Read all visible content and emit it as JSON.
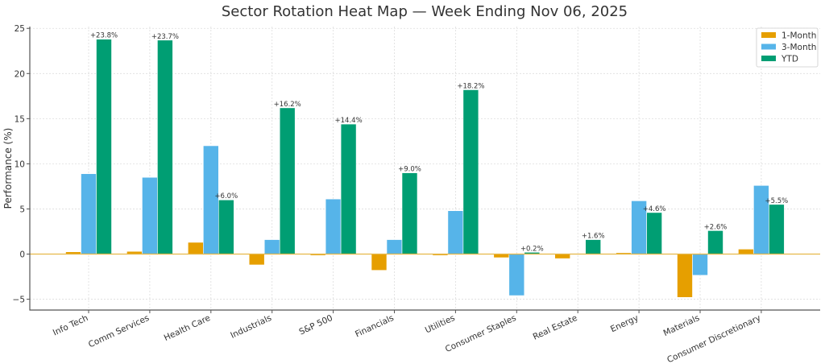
{
  "chart_data": {
    "type": "bar",
    "title": "Sector Rotation Heat Map — Week Ending Nov 06, 2025",
    "xlabel": "",
    "ylabel": "Performance (%)",
    "ylim": [
      -6.2,
      25.2
    ],
    "yticks": [
      -5,
      0,
      5,
      10,
      15,
      20,
      25
    ],
    "ytick_labels": [
      "−5",
      "0",
      "5",
      "10",
      "15",
      "20",
      "25"
    ],
    "grid": true,
    "legend_position": "top-right",
    "categories": [
      "Info Tech",
      "Comm Services",
      "Health Care",
      "Industrials",
      "S&P 500",
      "Financials",
      "Utilities",
      "Consumer Staples",
      "Real Estate",
      "Energy",
      "Materials",
      "Consumer Discretionary"
    ],
    "series": [
      {
        "name": "1-Month",
        "color": "#E69F00",
        "values": [
          0.25,
          0.3,
          1.3,
          -1.2,
          -0.15,
          -1.8,
          -0.15,
          -0.4,
          -0.5,
          0.15,
          -4.8,
          0.55
        ]
      },
      {
        "name": "3-Month",
        "color": "#56B4E9",
        "values": [
          8.9,
          8.5,
          12.0,
          1.6,
          6.1,
          1.6,
          4.8,
          -4.6,
          0.05,
          5.9,
          -2.35,
          7.6
        ]
      },
      {
        "name": "YTD",
        "color": "#009E73",
        "values": [
          23.8,
          23.7,
          6.0,
          16.2,
          14.4,
          9.0,
          18.2,
          0.2,
          1.6,
          4.6,
          2.6,
          5.5
        ]
      }
    ],
    "data_labels": [
      "+23.8%",
      "+23.7%",
      "+6.0%",
      "+16.2%",
      "+14.4%",
      "+9.0%",
      "+18.2%",
      "+0.2%",
      "+1.6%",
      "+4.6%",
      "+2.6%",
      "+5.5%"
    ],
    "zero_line_color": "#E6B84A"
  }
}
